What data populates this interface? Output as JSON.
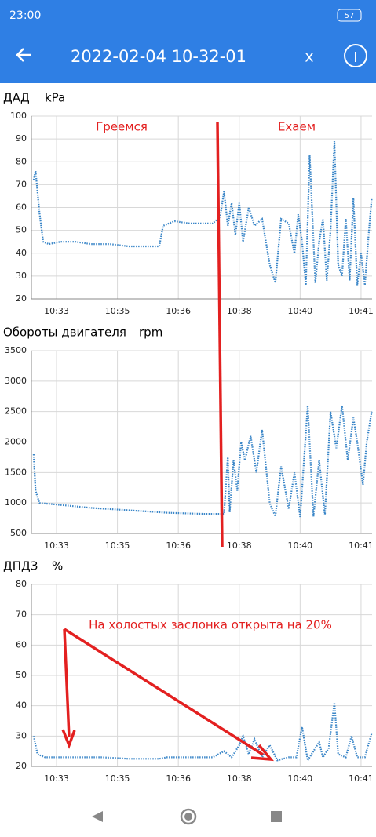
{
  "status_bar": {
    "time": "23:00",
    "battery": "57"
  },
  "app_bar": {
    "title": "2022-02-04 10-32-01",
    "action": "x"
  },
  "chart_data": [
    {
      "type": "line",
      "title": "ДАД",
      "y_label": "kPa",
      "color": "#3a86c8",
      "grid": true,
      "x": [
        32.5,
        32.55,
        32.65,
        32.75,
        32.9,
        33.2,
        33.6,
        34.0,
        34.5,
        35.0,
        35.5,
        35.8,
        35.9,
        36.2,
        36.6,
        37.0,
        37.2,
        37.4,
        37.5,
        37.6,
        37.7,
        37.8,
        37.9,
        38.0,
        38.15,
        38.3,
        38.5,
        38.7,
        38.85,
        39.0,
        39.2,
        39.35,
        39.45,
        39.55,
        39.65,
        39.75,
        39.9,
        40.0,
        40.1,
        40.2,
        40.3,
        40.4,
        40.5,
        40.6,
        40.7,
        40.8,
        40.9,
        41.0,
        41.1,
        41.2,
        41.3,
        41.38
      ],
      "values": [
        72,
        76,
        58,
        45,
        44,
        45,
        45,
        44,
        44,
        43,
        43,
        43,
        52,
        54,
        53,
        53,
        53,
        56,
        67,
        52,
        62,
        48,
        62,
        45,
        60,
        52,
        55,
        35,
        27,
        55,
        53,
        40,
        57,
        45,
        26,
        83,
        27,
        45,
        55,
        28,
        50,
        89,
        35,
        30,
        55,
        28,
        64,
        26,
        40,
        26,
        48,
        64
      ],
      "xlim": [
        32.44,
        41.39
      ],
      "xticks": [
        {
          "value": 33.1,
          "label": "10:33"
        },
        {
          "value": 34.7,
          "label": "10:35"
        },
        {
          "value": 36.3,
          "label": "10:36"
        },
        {
          "value": 37.9,
          "label": "10:38"
        },
        {
          "value": 39.5,
          "label": "10:40"
        },
        {
          "value": 41.1,
          "label": "10:41"
        }
      ],
      "ylim": [
        20,
        100
      ],
      "yticks": [
        20,
        30,
        40,
        50,
        60,
        70,
        80,
        90,
        100
      ]
    },
    {
      "type": "line",
      "title": "Обороты двигателя",
      "y_label": "rpm",
      "color": "#3a86c8",
      "grid": true,
      "x": [
        32.5,
        32.55,
        32.65,
        33.0,
        33.5,
        34.0,
        34.5,
        35.0,
        35.5,
        36.0,
        36.5,
        37.0,
        37.5,
        37.6,
        37.65,
        37.75,
        37.85,
        37.95,
        38.05,
        38.2,
        38.35,
        38.5,
        38.7,
        38.85,
        39.0,
        39.2,
        39.35,
        39.5,
        39.7,
        39.85,
        40.0,
        40.15,
        40.3,
        40.45,
        40.6,
        40.75,
        40.9,
        41.0,
        41.15,
        41.25,
        41.38
      ],
      "values": [
        1800,
        1200,
        1000,
        980,
        950,
        920,
        900,
        880,
        860,
        840,
        830,
        820,
        820,
        1750,
        850,
        1700,
        1200,
        2000,
        1700,
        2100,
        1500,
        2200,
        1000,
        780,
        1600,
        900,
        1500,
        770,
        2600,
        780,
        1700,
        800,
        2500,
        1900,
        2600,
        1700,
        2400,
        2000,
        1300,
        2000,
        2500
      ],
      "xlim": [
        32.44,
        41.39
      ],
      "xticks": [
        {
          "value": 33.1,
          "label": "10:33"
        },
        {
          "value": 34.7,
          "label": "10:35"
        },
        {
          "value": 36.3,
          "label": "10:36"
        },
        {
          "value": 37.9,
          "label": "10:38"
        },
        {
          "value": 39.5,
          "label": "10:40"
        },
        {
          "value": 41.1,
          "label": "10:41"
        }
      ],
      "ylim": [
        500,
        3500
      ],
      "yticks": [
        500,
        1000,
        1500,
        2000,
        2500,
        3000,
        3500
      ]
    },
    {
      "type": "line",
      "title": "ДПДЗ",
      "y_label": "%",
      "color": "#3a86c8",
      "grid": true,
      "x": [
        32.5,
        32.6,
        32.8,
        33.5,
        34.3,
        35.0,
        35.8,
        36.0,
        36.5,
        37.2,
        37.5,
        37.7,
        37.9,
        38.0,
        38.15,
        38.3,
        38.5,
        38.7,
        38.9,
        39.2,
        39.4,
        39.55,
        39.7,
        39.85,
        40.0,
        40.1,
        40.25,
        40.4,
        40.5,
        40.7,
        40.85,
        41.0,
        41.2,
        41.38
      ],
      "values": [
        30,
        24,
        23,
        23,
        23,
        22.5,
        22.5,
        23,
        23,
        23,
        25,
        23,
        27,
        30,
        24,
        29,
        23,
        27,
        22,
        23,
        23,
        33,
        22,
        25,
        28,
        23,
        26,
        41,
        24,
        23,
        30,
        23,
        23,
        31
      ],
      "xlim": [
        32.44,
        41.39
      ],
      "xticks": [
        {
          "value": 33.1,
          "label": "10:33"
        },
        {
          "value": 34.7,
          "label": "10:35"
        },
        {
          "value": 36.3,
          "label": "10:36"
        },
        {
          "value": 37.9,
          "label": "10:38"
        },
        {
          "value": 39.5,
          "label": "10:40"
        },
        {
          "value": 41.1,
          "label": "10:41"
        }
      ],
      "ylim": [
        20,
        80
      ],
      "yticks": [
        20,
        30,
        40,
        50,
        60,
        70,
        80
      ]
    }
  ],
  "annotations": [
    {
      "text": "Греемся"
    },
    {
      "text": "Ехаем"
    },
    {
      "text": "На холостых заслонка открыта на 20%"
    }
  ]
}
